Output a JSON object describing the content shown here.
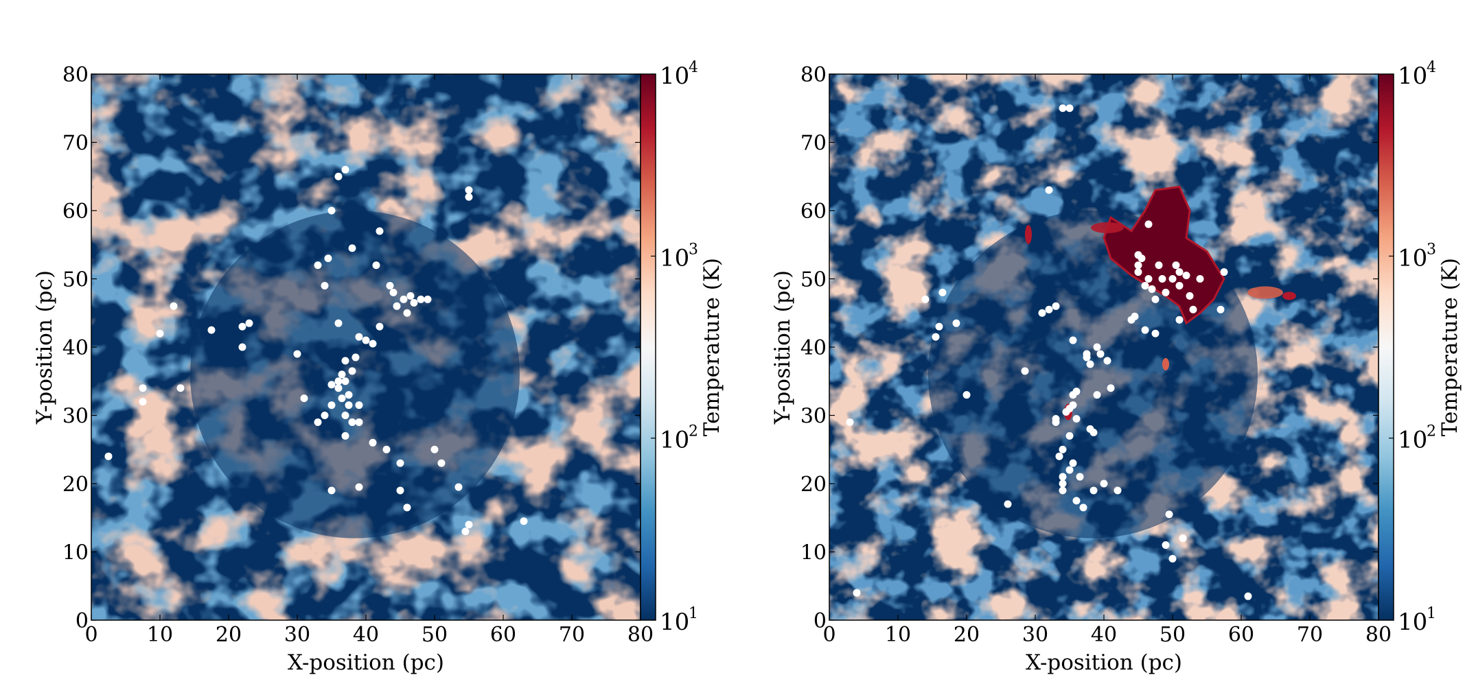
{
  "chart_data": [
    {
      "type": "heatmap",
      "panel": "left",
      "xlabel": "X-position (pc)",
      "ylabel": "Y-position (pc)",
      "xlim": [
        0,
        80
      ],
      "ylim": [
        0,
        80
      ],
      "xticks": [
        "0",
        "10",
        "20",
        "30",
        "40",
        "50",
        "60",
        "70",
        "80"
      ],
      "yticks": [
        "0",
        "10",
        "20",
        "30",
        "40",
        "50",
        "60",
        "70",
        "80"
      ],
      "colorbar": {
        "label": "Temperature (K)",
        "scale": "log",
        "range": [
          10,
          10000
        ],
        "ticks": [
          {
            "base": "10",
            "exp": "1",
            "value": 10
          },
          {
            "base": "10",
            "exp": "2",
            "value": 100
          },
          {
            "base": "10",
            "exp": "3",
            "value": 1000
          },
          {
            "base": "10",
            "exp": "4",
            "value": 10000
          }
        ],
        "colormap": [
          "#053061",
          "#2166ac",
          "#4393c3",
          "#92c5de",
          "#d1e5f0",
          "#f7f7f7",
          "#fddbc7",
          "#f4a582",
          "#d6604d",
          "#b2182b",
          "#67001f"
        ]
      },
      "hot_region": false,
      "points_label": "sink particles (white dots)",
      "points": [
        [
          2.5,
          24
        ],
        [
          7.5,
          34
        ],
        [
          7.5,
          32
        ],
        [
          10,
          42
        ],
        [
          12,
          46
        ],
        [
          13,
          34
        ],
        [
          17.5,
          42.5
        ],
        [
          22,
          43
        ],
        [
          22,
          40
        ],
        [
          23,
          43.5
        ],
        [
          30,
          39
        ],
        [
          31,
          32.5
        ],
        [
          33,
          29
        ],
        [
          33,
          52
        ],
        [
          34,
          49
        ],
        [
          34,
          30
        ],
        [
          34.5,
          53
        ],
        [
          35,
          60
        ],
        [
          35,
          34.5
        ],
        [
          35,
          31.5
        ],
        [
          35,
          19
        ],
        [
          36,
          65
        ],
        [
          36,
          43.5
        ],
        [
          36,
          35
        ],
        [
          36,
          34
        ],
        [
          36.5,
          32.5
        ],
        [
          36.5,
          36
        ],
        [
          37,
          66
        ],
        [
          37,
          35
        ],
        [
          37,
          30
        ],
        [
          37,
          27
        ],
        [
          37,
          38
        ],
        [
          37.5,
          33
        ],
        [
          37.5,
          31.5
        ],
        [
          38,
          29
        ],
        [
          38,
          36.5
        ],
        [
          38,
          54.5
        ],
        [
          38.5,
          38.5
        ],
        [
          39,
          29
        ],
        [
          39,
          31.5
        ],
        [
          39,
          41.5
        ],
        [
          39,
          19.5
        ],
        [
          40,
          41
        ],
        [
          41,
          40.5
        ],
        [
          41,
          26
        ],
        [
          41.5,
          52
        ],
        [
          42,
          57
        ],
        [
          42,
          43
        ],
        [
          43,
          25
        ],
        [
          43.5,
          49
        ],
        [
          44,
          48
        ],
        [
          44.5,
          46
        ],
        [
          45,
          23
        ],
        [
          45,
          19
        ],
        [
          45.5,
          47
        ],
        [
          46,
          16.5
        ],
        [
          46,
          45
        ],
        [
          46.5,
          47.5
        ],
        [
          47,
          46.5
        ],
        [
          48,
          47
        ],
        [
          49,
          47
        ],
        [
          50,
          25
        ],
        [
          51,
          23
        ],
        [
          53.5,
          19.5
        ],
        [
          54.5,
          13
        ],
        [
          55,
          63
        ],
        [
          55,
          62
        ],
        [
          55,
          14
        ],
        [
          63,
          14.5
        ]
      ]
    },
    {
      "type": "heatmap",
      "panel": "right",
      "xlabel": "X-position (pc)",
      "ylabel": "Y-position (pc)",
      "xlim": [
        0,
        80
      ],
      "ylim": [
        0,
        80
      ],
      "xticks": [
        "0",
        "10",
        "20",
        "30",
        "40",
        "50",
        "60",
        "70",
        "80"
      ],
      "yticks": [
        "0",
        "10",
        "20",
        "30",
        "40",
        "50",
        "60",
        "70",
        "80"
      ],
      "colorbar": {
        "label": "Temperature (K)",
        "scale": "log",
        "range": [
          10,
          10000
        ],
        "ticks": [
          {
            "base": "10",
            "exp": "1",
            "value": 10
          },
          {
            "base": "10",
            "exp": "2",
            "value": 100
          },
          {
            "base": "10",
            "exp": "3",
            "value": 1000
          },
          {
            "base": "10",
            "exp": "4",
            "value": 10000
          }
        ],
        "colormap": [
          "#053061",
          "#2166ac",
          "#4393c3",
          "#92c5de",
          "#d1e5f0",
          "#f7f7f7",
          "#fddbc7",
          "#f4a582",
          "#d6604d",
          "#b2182b",
          "#67001f"
        ]
      },
      "hot_region": true,
      "points_label": "sink particles (white dots)",
      "points": [
        [
          3,
          29
        ],
        [
          4,
          4
        ],
        [
          14,
          47
        ],
        [
          15.5,
          41.5
        ],
        [
          16,
          43
        ],
        [
          16.5,
          48
        ],
        [
          18.5,
          43.5
        ],
        [
          20,
          33
        ],
        [
          26,
          17
        ],
        [
          28.5,
          36.5
        ],
        [
          32,
          63
        ],
        [
          31,
          45
        ],
        [
          32,
          45.5
        ],
        [
          33,
          46
        ],
        [
          33,
          29.5
        ],
        [
          33,
          29
        ],
        [
          33.5,
          24
        ],
        [
          34,
          21
        ],
        [
          34,
          20
        ],
        [
          34,
          19
        ],
        [
          34,
          25
        ],
        [
          34.5,
          30.5
        ],
        [
          35,
          31
        ],
        [
          35.5,
          31.5
        ],
        [
          35,
          27
        ],
        [
          35,
          22
        ],
        [
          35.5,
          33
        ],
        [
          36,
          33.5
        ],
        [
          36,
          29.5
        ],
        [
          35.5,
          41
        ],
        [
          34,
          75
        ],
        [
          35,
          75
        ],
        [
          35.5,
          23
        ],
        [
          36.5,
          21
        ],
        [
          36,
          17.5
        ],
        [
          37,
          16.5
        ],
        [
          37.5,
          39
        ],
        [
          37.5,
          38.5
        ],
        [
          38,
          37.5
        ],
        [
          38,
          28
        ],
        [
          38.5,
          27.5
        ],
        [
          38.5,
          19
        ],
        [
          39,
          40
        ],
        [
          39,
          33
        ],
        [
          39.5,
          39
        ],
        [
          40,
          20
        ],
        [
          40.5,
          38
        ],
        [
          41,
          34
        ],
        [
          42,
          19
        ],
        [
          44,
          44
        ],
        [
          44.5,
          44.5
        ],
        [
          45,
          53.5
        ],
        [
          45,
          52
        ],
        [
          45,
          51
        ],
        [
          45.5,
          53
        ],
        [
          46,
          49
        ],
        [
          46.5,
          50
        ],
        [
          46,
          42.5
        ],
        [
          46.5,
          58
        ],
        [
          47,
          48.5
        ],
        [
          47.5,
          42
        ],
        [
          47.5,
          47
        ],
        [
          48,
          52
        ],
        [
          48.5,
          50
        ],
        [
          49,
          48
        ],
        [
          49,
          11
        ],
        [
          49.5,
          15.5
        ],
        [
          50,
          50
        ],
        [
          50.5,
          52
        ],
        [
          51,
          51
        ],
        [
          51,
          49
        ],
        [
          51,
          44
        ],
        [
          51.5,
          12
        ],
        [
          50,
          9
        ],
        [
          52,
          50.5
        ],
        [
          52.5,
          47.5
        ],
        [
          53,
          45.5
        ],
        [
          54,
          50
        ],
        [
          57,
          45.5
        ],
        [
          57.5,
          51
        ],
        [
          61,
          3.5
        ]
      ]
    }
  ]
}
